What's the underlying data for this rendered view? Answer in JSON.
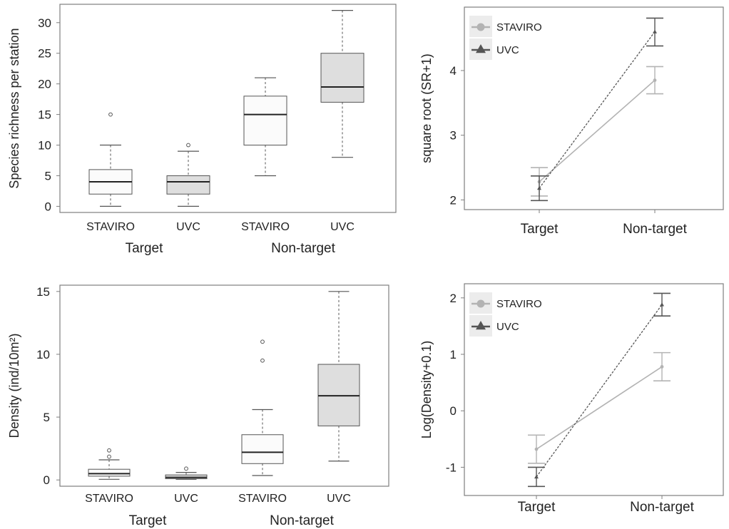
{
  "colors": {
    "frame": "#7f7f7f",
    "box_light": "#fbfbfb",
    "box_dark": "#dedede",
    "median": "#222222",
    "whisker": "#555555",
    "staviro_line": "#b3b3b3",
    "uvc_line": "#555555",
    "legend_bg": "#ececec"
  },
  "chart_data": [
    {
      "type": "box",
      "ylabel": "Species richness per station",
      "ylim": [
        -1,
        33
      ],
      "yticks": [
        0,
        5,
        10,
        15,
        20,
        25,
        30
      ],
      "categories": [
        "STAVIRO",
        "UVC",
        "STAVIRO",
        "UVC"
      ],
      "groups": [
        {
          "label": "Target",
          "categories": [
            0,
            1
          ]
        },
        {
          "label": "Non-target",
          "categories": [
            2,
            3
          ]
        }
      ],
      "boxes": [
        {
          "category": "STAVIRO",
          "group": "Target",
          "shade": "light",
          "min": 0,
          "q1": 2,
          "median": 4,
          "q3": 6,
          "max": 10,
          "outliers": [
            15
          ]
        },
        {
          "category": "UVC",
          "group": "Target",
          "shade": "dark",
          "min": 0,
          "q1": 2,
          "median": 4,
          "q3": 5,
          "max": 9,
          "outliers": [
            10
          ]
        },
        {
          "category": "STAVIRO",
          "group": "Non-target",
          "shade": "light",
          "min": 5,
          "q1": 10,
          "median": 15,
          "q3": 18,
          "max": 21,
          "outliers": []
        },
        {
          "category": "UVC",
          "group": "Non-target",
          "shade": "dark",
          "min": 8,
          "q1": 17,
          "median": 19.5,
          "q3": 25,
          "max": 32,
          "outliers": []
        }
      ]
    },
    {
      "type": "line",
      "ylabel": "square root  (SR+1)",
      "ylim": [
        1.85,
        4.98
      ],
      "yticks": [
        2,
        3,
        4
      ],
      "x": [
        "Target",
        "Non-target"
      ],
      "legend_position": "top-left",
      "series": [
        {
          "name": "STAVIRO",
          "marker": "circle",
          "style": "solid",
          "values": [
            2.28,
            3.85
          ],
          "lower": [
            2.06,
            3.64
          ],
          "upper": [
            2.5,
            4.06
          ]
        },
        {
          "name": "UVC",
          "marker": "triangle",
          "style": "dotted",
          "values": [
            2.18,
            4.6
          ],
          "lower": [
            1.99,
            4.38
          ],
          "upper": [
            2.37,
            4.81
          ]
        }
      ]
    },
    {
      "type": "box",
      "ylabel": "Density  (ind/10m²)",
      "ylim": [
        -0.5,
        15.5
      ],
      "yticks": [
        0,
        5,
        10,
        15
      ],
      "categories": [
        "STAVIRO",
        "UVC",
        "STAVIRO",
        "UVC"
      ],
      "groups": [
        {
          "label": "Target",
          "categories": [
            0,
            1
          ]
        },
        {
          "label": "Non-target",
          "categories": [
            2,
            3
          ]
        }
      ],
      "boxes": [
        {
          "category": "STAVIRO",
          "group": "Target",
          "shade": "light",
          "min": 0.05,
          "q1": 0.3,
          "median": 0.5,
          "q3": 0.85,
          "max": 1.6,
          "outliers": [
            1.85,
            2.35
          ]
        },
        {
          "category": "UVC",
          "group": "Target",
          "shade": "dark",
          "min": 0.05,
          "q1": 0.1,
          "median": 0.2,
          "q3": 0.4,
          "max": 0.6,
          "outliers": [
            0.9
          ]
        },
        {
          "category": "STAVIRO",
          "group": "Non-target",
          "shade": "light",
          "min": 0.35,
          "q1": 1.3,
          "median": 2.2,
          "q3": 3.6,
          "max": 5.6,
          "outliers": [
            9.5,
            11
          ]
        },
        {
          "category": "UVC",
          "group": "Non-target",
          "shade": "dark",
          "min": 1.5,
          "q1": 4.3,
          "median": 6.7,
          "q3": 9.2,
          "max": 15,
          "outliers": []
        }
      ]
    },
    {
      "type": "line",
      "ylabel": "Log(Density+0.1)",
      "ylim": [
        -1.5,
        2.25
      ],
      "yticks": [
        -1,
        0,
        1,
        2
      ],
      "x": [
        "Target",
        "Non-target"
      ],
      "legend_position": "top-left",
      "series": [
        {
          "name": "STAVIRO",
          "marker": "circle",
          "style": "solid",
          "values": [
            -0.68,
            0.78
          ],
          "lower": [
            -0.93,
            0.53
          ],
          "upper": [
            -0.43,
            1.03
          ]
        },
        {
          "name": "UVC",
          "marker": "triangle",
          "style": "dotted",
          "values": [
            -1.17,
            1.88
          ],
          "lower": [
            -1.34,
            1.68
          ],
          "upper": [
            -1.0,
            2.08
          ]
        }
      ]
    }
  ]
}
